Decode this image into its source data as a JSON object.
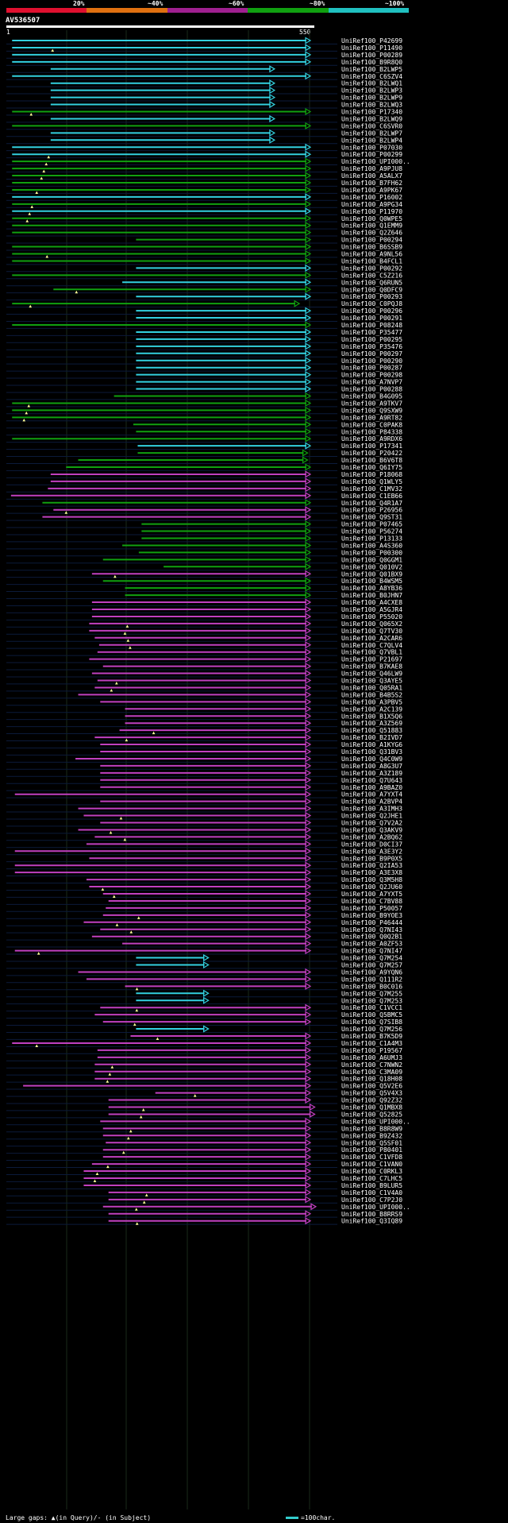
{
  "header": {
    "query_id": "AV536507",
    "ruler_start": "1",
    "ruler_end": "550",
    "percent_labels": [
      "20%",
      "~40%",
      "~60%",
      "~80%",
      "~100%"
    ],
    "percent_colors": [
      "#e0102f",
      "#e07010",
      "#a02090",
      "#10a010",
      "#20c0c0"
    ]
  },
  "colors": {
    "cyan": "#33d0e0",
    "green": "#10a010",
    "magenta": "#c040c0"
  },
  "hits": [
    {
      "id": "UniRef100_P42699",
      "s": 10,
      "e": 550,
      "c": "cyan",
      "a": false
    },
    {
      "id": "UniRef100_P11490",
      "s": 10,
      "e": 550,
      "c": "cyan",
      "a": true
    },
    {
      "id": "UniRef100_P00289",
      "s": 10,
      "e": 550,
      "c": "cyan",
      "a": false
    },
    {
      "id": "UniRef100_B9R8Q0",
      "s": 10,
      "e": 550,
      "c": "cyan",
      "a": false
    },
    {
      "id": "UniRef100_B2LWP5",
      "s": 80,
      "e": 485,
      "c": "cyan",
      "a": false
    },
    {
      "id": "UniRef100_C6SZV4",
      "s": 10,
      "e": 550,
      "c": "cyan",
      "a": false
    },
    {
      "id": "UniRef100_B2LWQ1",
      "s": 80,
      "e": 485,
      "c": "cyan",
      "a": false
    },
    {
      "id": "UniRef100_B2LWP3",
      "s": 80,
      "e": 485,
      "c": "cyan",
      "a": false
    },
    {
      "id": "UniRef100_B2LWP9",
      "s": 80,
      "e": 485,
      "c": "cyan",
      "a": false
    },
    {
      "id": "UniRef100_B2LWQ3",
      "s": 80,
      "e": 485,
      "c": "cyan",
      "a": false
    },
    {
      "id": "UniRef100_P17340",
      "s": 10,
      "e": 550,
      "c": "green",
      "a": true
    },
    {
      "id": "UniRef100_B2LWQ9",
      "s": 80,
      "e": 485,
      "c": "cyan",
      "a": false
    },
    {
      "id": "UniRef100_C6SVR0",
      "s": 10,
      "e": 550,
      "c": "green",
      "a": false
    },
    {
      "id": "UniRef100_B2LWP7",
      "s": 80,
      "e": 485,
      "c": "cyan",
      "a": false
    },
    {
      "id": "UniRef100_B2LWP4",
      "s": 80,
      "e": 485,
      "c": "cyan",
      "a": false
    },
    {
      "id": "UniRef100_P07030",
      "s": 10,
      "e": 550,
      "c": "cyan",
      "a": false
    },
    {
      "id": "UniRef100_P00299",
      "s": 10,
      "e": 550,
      "c": "cyan",
      "a": true
    },
    {
      "id": "UniRef100_UPI000..",
      "s": 10,
      "e": 550,
      "c": "green",
      "a": true
    },
    {
      "id": "UniRef100_A9PJU8",
      "s": 10,
      "e": 550,
      "c": "green",
      "a": true
    },
    {
      "id": "UniRef100_A5ALX7",
      "s": 10,
      "e": 550,
      "c": "green",
      "a": true
    },
    {
      "id": "UniRef100_B7FH62",
      "s": 10,
      "e": 550,
      "c": "green",
      "a": false
    },
    {
      "id": "UniRef100_A9PK67",
      "s": 10,
      "e": 550,
      "c": "green",
      "a": true
    },
    {
      "id": "UniRef100_P16002",
      "s": 10,
      "e": 550,
      "c": "cyan",
      "a": false
    },
    {
      "id": "UniRef100_A9PG34",
      "s": 10,
      "e": 550,
      "c": "green",
      "a": true
    },
    {
      "id": "UniRef100_P11970",
      "s": 10,
      "e": 550,
      "c": "cyan",
      "a": true
    },
    {
      "id": "UniRef100_Q0WPE5",
      "s": 10,
      "e": 550,
      "c": "green",
      "a": true
    },
    {
      "id": "UniRef100_Q1EMM9",
      "s": 10,
      "e": 550,
      "c": "green",
      "a": false
    },
    {
      "id": "UniRef100_Q2Z646",
      "s": 10,
      "e": 550,
      "c": "green",
      "a": false
    },
    {
      "id": "UniRef100_P00294",
      "s": 235,
      "e": 550,
      "c": "green",
      "a": false
    },
    {
      "id": "UniRef100_B6SSB9",
      "s": 10,
      "e": 550,
      "c": "green",
      "a": false
    },
    {
      "id": "UniRef100_A9NL56",
      "s": 10,
      "e": 550,
      "c": "green",
      "a": true
    },
    {
      "id": "UniRef100_B4FCL1",
      "s": 10,
      "e": 550,
      "c": "green",
      "a": false
    },
    {
      "id": "UniRef100_P00292",
      "s": 235,
      "e": 550,
      "c": "cyan",
      "a": false
    },
    {
      "id": "UniRef100_C5Z216",
      "s": 10,
      "e": 550,
      "c": "green",
      "a": false
    },
    {
      "id": "UniRef100_Q6RUN5",
      "s": 210,
      "e": 550,
      "c": "cyan",
      "a": false
    },
    {
      "id": "UniRef100_Q0DFC9",
      "s": 85,
      "e": 550,
      "c": "green",
      "a": true
    },
    {
      "id": "UniRef100_P00293",
      "s": 235,
      "e": 550,
      "c": "cyan",
      "a": false
    },
    {
      "id": "UniRef100_C0PQJ8",
      "s": 10,
      "e": 530,
      "c": "green",
      "a": true
    },
    {
      "id": "UniRef100_P00296",
      "s": 235,
      "e": 550,
      "c": "cyan",
      "a": false
    },
    {
      "id": "UniRef100_P00291",
      "s": 235,
      "e": 550,
      "c": "cyan",
      "a": false
    },
    {
      "id": "UniRef100_P08248",
      "s": 10,
      "e": 550,
      "c": "green",
      "a": false
    },
    {
      "id": "UniRef100_P35477",
      "s": 235,
      "e": 550,
      "c": "cyan",
      "a": false
    },
    {
      "id": "UniRef100_P00295",
      "s": 235,
      "e": 550,
      "c": "cyan",
      "a": false
    },
    {
      "id": "UniRef100_P35476",
      "s": 235,
      "e": 550,
      "c": "cyan",
      "a": false
    },
    {
      "id": "UniRef100_P00297",
      "s": 235,
      "e": 550,
      "c": "cyan",
      "a": false
    },
    {
      "id": "UniRef100_P00290",
      "s": 235,
      "e": 550,
      "c": "cyan",
      "a": false
    },
    {
      "id": "UniRef100_P00287",
      "s": 235,
      "e": 550,
      "c": "cyan",
      "a": false
    },
    {
      "id": "UniRef100_P00298",
      "s": 235,
      "e": 550,
      "c": "cyan",
      "a": false
    },
    {
      "id": "UniRef100_A7NVP7",
      "s": 235,
      "e": 550,
      "c": "cyan",
      "a": false
    },
    {
      "id": "UniRef100_P00288",
      "s": 235,
      "e": 550,
      "c": "cyan",
      "a": false
    },
    {
      "id": "UniRef100_B4G095",
      "s": 195,
      "e": 550,
      "c": "green",
      "a": false
    },
    {
      "id": "UniRef100_A9TKV7",
      "s": 10,
      "e": 550,
      "c": "green",
      "a": true
    },
    {
      "id": "UniRef100_Q9SXW9",
      "s": 10,
      "e": 550,
      "c": "green",
      "a": true
    },
    {
      "id": "UniRef100_A9RT82",
      "s": 10,
      "e": 550,
      "c": "green",
      "a": true
    },
    {
      "id": "UniRef100_C0PAK8",
      "s": 230,
      "e": 550,
      "c": "green",
      "a": false
    },
    {
      "id": "UniRef100_P84338",
      "s": 235,
      "e": 550,
      "c": "green",
      "a": false
    },
    {
      "id": "UniRef100_A9RDX6",
      "s": 10,
      "e": 550,
      "c": "green",
      "a": false
    },
    {
      "id": "UniRef100_P17341",
      "s": 238,
      "e": 550,
      "c": "cyan",
      "a": false
    },
    {
      "id": "UniRef100_P20422",
      "s": 238,
      "e": 545,
      "c": "green",
      "a": false
    },
    {
      "id": "UniRef100_B6V6T8",
      "s": 130,
      "e": 545,
      "c": "green",
      "a": false
    },
    {
      "id": "UniRef100_Q6IY75",
      "s": 108,
      "e": 550,
      "c": "green",
      "a": false
    },
    {
      "id": "UniRef100_P18068",
      "s": 80,
      "e": 550,
      "c": "magenta",
      "a": false
    },
    {
      "id": "UniRef100_Q1WLY5",
      "s": 80,
      "e": 550,
      "c": "magenta",
      "a": false
    },
    {
      "id": "UniRef100_C1MV32",
      "s": 75,
      "e": 550,
      "c": "magenta",
      "a": false
    },
    {
      "id": "UniRef100_C1EB66",
      "s": 8,
      "e": 550,
      "c": "magenta",
      "a": false
    },
    {
      "id": "UniRef100_Q4R1A7",
      "s": 65,
      "e": 550,
      "c": "green",
      "a": false
    },
    {
      "id": "UniRef100_P26956",
      "s": 85,
      "e": 550,
      "c": "magenta",
      "a": true
    },
    {
      "id": "UniRef100_Q9ST31",
      "s": 65,
      "e": 550,
      "c": "magenta",
      "a": false
    },
    {
      "id": "UniRef100_P07465",
      "s": 245,
      "e": 550,
      "c": "green",
      "a": false
    },
    {
      "id": "UniRef100_P56274",
      "s": 245,
      "e": 550,
      "c": "green",
      "a": false
    },
    {
      "id": "UniRef100_P13133",
      "s": 245,
      "e": 550,
      "c": "green",
      "a": false
    },
    {
      "id": "UniRef100_A4S360",
      "s": 210,
      "e": 550,
      "c": "green",
      "a": false
    },
    {
      "id": "UniRef100_P00300",
      "s": 240,
      "e": 550,
      "c": "green",
      "a": false
    },
    {
      "id": "UniRef100_Q0GGM1",
      "s": 175,
      "e": 550,
      "c": "green",
      "a": false
    },
    {
      "id": "UniRef100_Q010V2",
      "s": 285,
      "e": 550,
      "c": "green",
      "a": false
    },
    {
      "id": "UniRef100_Q01BX9",
      "s": 155,
      "e": 550,
      "c": "magenta",
      "a": true
    },
    {
      "id": "UniRef100_B4WSM5",
      "s": 175,
      "e": 550,
      "c": "green",
      "a": false
    },
    {
      "id": "UniRef100_A8YB36",
      "s": 215,
      "e": 550,
      "c": "green",
      "a": false
    },
    {
      "id": "UniRef100_B0JHN7",
      "s": 215,
      "e": 550,
      "c": "green",
      "a": false
    },
    {
      "id": "UniRef100_A4CXE8",
      "s": 155,
      "e": 550,
      "c": "magenta",
      "a": false
    },
    {
      "id": "UniRef100_A5GJR4",
      "s": 155,
      "e": 550,
      "c": "magenta",
      "a": false
    },
    {
      "id": "UniRef100_P55020",
      "s": 155,
      "e": 550,
      "c": "magenta",
      "a": false
    },
    {
      "id": "UniRef100_Q065X2",
      "s": 150,
      "e": 550,
      "c": "magenta",
      "a": true
    },
    {
      "id": "UniRef100_Q7TV30",
      "s": 150,
      "e": 550,
      "c": "magenta",
      "a": true
    },
    {
      "id": "UniRef100_A2CAR6",
      "s": 160,
      "e": 550,
      "c": "magenta",
      "a": true
    },
    {
      "id": "UniRef100_C7QLV4",
      "s": 168,
      "e": 550,
      "c": "magenta",
      "a": true
    },
    {
      "id": "UniRef100_Q7VBL1",
      "s": 165,
      "e": 550,
      "c": "magenta",
      "a": false
    },
    {
      "id": "UniRef100_P21697",
      "s": 150,
      "e": 550,
      "c": "magenta",
      "a": false
    },
    {
      "id": "UniRef100_B7KAE8",
      "s": 175,
      "e": 550,
      "c": "magenta",
      "a": false
    },
    {
      "id": "UniRef100_Q46LW9",
      "s": 155,
      "e": 550,
      "c": "magenta",
      "a": false
    },
    {
      "id": "UniRef100_Q3AYE5",
      "s": 165,
      "e": 550,
      "c": "magenta",
      "a": true
    },
    {
      "id": "UniRef100_Q05RA1",
      "s": 160,
      "e": 550,
      "c": "magenta",
      "a": true
    },
    {
      "id": "UniRef100_B4B5S2",
      "s": 130,
      "e": 550,
      "c": "magenta",
      "a": false
    },
    {
      "id": "UniRef100_A3PBV5",
      "s": 170,
      "e": 550,
      "c": "magenta",
      "a": false
    },
    {
      "id": "UniRef100_A2C139",
      "s": 215,
      "e": 550,
      "c": "magenta",
      "a": false
    },
    {
      "id": "UniRef100_B1X5Q6",
      "s": 215,
      "e": 550,
      "c": "magenta",
      "a": false
    },
    {
      "id": "UniRef100_A3Z569",
      "s": 215,
      "e": 550,
      "c": "magenta",
      "a": false
    },
    {
      "id": "UniRef100_Q51883",
      "s": 205,
      "e": 550,
      "c": "magenta",
      "a": true
    },
    {
      "id": "UniRef100_B2IVD7",
      "s": 160,
      "e": 550,
      "c": "magenta",
      "a": true
    },
    {
      "id": "UniRef100_A1KYG6",
      "s": 170,
      "e": 550,
      "c": "magenta",
      "a": false
    },
    {
      "id": "UniRef100_Q31BV3",
      "s": 170,
      "e": 550,
      "c": "magenta",
      "a": false
    },
    {
      "id": "UniRef100_Q4C0W9",
      "s": 125,
      "e": 550,
      "c": "magenta",
      "a": false
    },
    {
      "id": "UniRef100_A8G3U7",
      "s": 170,
      "e": 550,
      "c": "magenta",
      "a": false
    },
    {
      "id": "UniRef100_A3Z189",
      "s": 170,
      "e": 550,
      "c": "magenta",
      "a": false
    },
    {
      "id": "UniRef100_Q7U643",
      "s": 170,
      "e": 550,
      "c": "magenta",
      "a": false
    },
    {
      "id": "UniRef100_A9BAZ0",
      "s": 170,
      "e": 550,
      "c": "magenta",
      "a": false
    },
    {
      "id": "UniRef100_A7YXT4",
      "s": 15,
      "e": 550,
      "c": "magenta",
      "a": false
    },
    {
      "id": "UniRef100_A2BVP4",
      "s": 170,
      "e": 550,
      "c": "magenta",
      "a": false
    },
    {
      "id": "UniRef100_A3IMH3",
      "s": 130,
      "e": 550,
      "c": "magenta",
      "a": false
    },
    {
      "id": "UniRef100_Q2JHE1",
      "s": 140,
      "e": 550,
      "c": "magenta",
      "a": true
    },
    {
      "id": "UniRef100_Q7V2A2",
      "s": 170,
      "e": 550,
      "c": "magenta",
      "a": false
    },
    {
      "id": "UniRef100_Q3AKV9",
      "s": 130,
      "e": 550,
      "c": "magenta",
      "a": true
    },
    {
      "id": "UniRef100_A2BQ62",
      "s": 160,
      "e": 550,
      "c": "magenta",
      "a": true
    },
    {
      "id": "UniRef100_D0CI37",
      "s": 145,
      "e": 550,
      "c": "magenta",
      "a": false
    },
    {
      "id": "UniRef100_A3E3Y2",
      "s": 15,
      "e": 550,
      "c": "magenta",
      "a": false
    },
    {
      "id": "UniRef100_B9P0X5",
      "s": 150,
      "e": 550,
      "c": "magenta",
      "a": false
    },
    {
      "id": "UniRef100_Q2IA53",
      "s": 15,
      "e": 550,
      "c": "magenta",
      "a": false
    },
    {
      "id": "UniRef100_A3E3X8",
      "s": 15,
      "e": 550,
      "c": "magenta",
      "a": false
    },
    {
      "id": "UniRef100_Q3M5H8",
      "s": 145,
      "e": 550,
      "c": "magenta",
      "a": false
    },
    {
      "id": "UniRef100_Q2JU60",
      "s": 150,
      "e": 550,
      "c": "magenta",
      "a": true
    },
    {
      "id": "UniRef100_A7YXT5",
      "s": 175,
      "e": 550,
      "c": "magenta",
      "a": true
    },
    {
      "id": "UniRef100_C7BV88",
      "s": 185,
      "e": 550,
      "c": "magenta",
      "a": false
    },
    {
      "id": "UniRef100_P50057",
      "s": 180,
      "e": 550,
      "c": "magenta",
      "a": false
    },
    {
      "id": "UniRef100_B9YOE3",
      "s": 175,
      "e": 550,
      "c": "magenta",
      "a": true
    },
    {
      "id": "UniRef100_P46444",
      "s": 140,
      "e": 550,
      "c": "magenta",
      "a": true
    },
    {
      "id": "UniRef100_Q7NI43",
      "s": 170,
      "e": 550,
      "c": "magenta",
      "a": true
    },
    {
      "id": "UniRef100_Q0Q2B1",
      "s": 155,
      "e": 550,
      "c": "magenta",
      "a": false
    },
    {
      "id": "UniRef100_A0ZF53",
      "s": 210,
      "e": 550,
      "c": "magenta",
      "a": false
    },
    {
      "id": "UniRef100_Q7NI47",
      "s": 15,
      "e": 550,
      "c": "magenta",
      "a": true
    },
    {
      "id": "UniRef100_Q7M254",
      "s": 235,
      "e": 365,
      "c": "cyan",
      "a": false
    },
    {
      "id": "UniRef100_Q7M257",
      "s": 235,
      "e": 365,
      "c": "cyan",
      "a": false
    },
    {
      "id": "UniRef100_A9YQN6",
      "s": 130,
      "e": 550,
      "c": "magenta",
      "a": false
    },
    {
      "id": "UniRef100_Q111R2",
      "s": 145,
      "e": 550,
      "c": "magenta",
      "a": false
    },
    {
      "id": "UniRef100_B0C016",
      "s": 215,
      "e": 550,
      "c": "magenta",
      "a": true
    },
    {
      "id": "UniRef100_Q7M255",
      "s": 235,
      "e": 365,
      "c": "cyan",
      "a": false
    },
    {
      "id": "UniRef100_Q7M253",
      "s": 235,
      "e": 365,
      "c": "cyan",
      "a": false
    },
    {
      "id": "UniRef100_C1VCC1",
      "s": 170,
      "e": 550,
      "c": "magenta",
      "a": true
    },
    {
      "id": "UniRef100_Q5BMC5",
      "s": 160,
      "e": 550,
      "c": "magenta",
      "a": false
    },
    {
      "id": "UniRef100_Q7SIB8",
      "s": 175,
      "e": 550,
      "c": "magenta",
      "a": true
    },
    {
      "id": "UniRef100_Q7M256",
      "s": 235,
      "e": 365,
      "c": "cyan",
      "a": false
    },
    {
      "id": "UniRef100_B7K5D9",
      "s": 225,
      "e": 550,
      "c": "magenta",
      "a": true
    },
    {
      "id": "UniRef100_C1A4M3",
      "s": 10,
      "e": 550,
      "c": "magenta",
      "a": true
    },
    {
      "id": "UniRef100_P19567",
      "s": 165,
      "e": 550,
      "c": "magenta",
      "a": false
    },
    {
      "id": "UniRef100_A6UMJ3",
      "s": 165,
      "e": 550,
      "c": "magenta",
      "a": false
    },
    {
      "id": "UniRef100_C7NWN2",
      "s": 160,
      "e": 550,
      "c": "magenta",
      "a": true
    },
    {
      "id": "UniRef100_C3MA09",
      "s": 160,
      "e": 550,
      "c": "magenta",
      "a": true
    },
    {
      "id": "UniRef100_Q18H08",
      "s": 160,
      "e": 550,
      "c": "magenta",
      "a": true
    },
    {
      "id": "UniRef100_Q5V2E6",
      "s": 30,
      "e": 550,
      "c": "magenta",
      "a": false
    },
    {
      "id": "UniRef100_Q5V4X3",
      "s": 270,
      "e": 550,
      "c": "magenta",
      "a": true
    },
    {
      "id": "UniRef100_Q92Z32",
      "s": 185,
      "e": 550,
      "c": "magenta",
      "a": false
    },
    {
      "id": "UniRef100_Q1MBX8",
      "s": 185,
      "e": 558,
      "c": "magenta",
      "a": true
    },
    {
      "id": "UniRef100_Q52825",
      "s": 185,
      "e": 558,
      "c": "magenta",
      "a": true
    },
    {
      "id": "UniRef100_UPI000..",
      "s": 170,
      "e": 550,
      "c": "magenta",
      "a": false
    },
    {
      "id": "UniRef100_B8R8W9",
      "s": 175,
      "e": 550,
      "c": "magenta",
      "a": true
    },
    {
      "id": "UniRef100_B9Z432",
      "s": 175,
      "e": 550,
      "c": "magenta",
      "a": true
    },
    {
      "id": "UniRef100_Q5SF01",
      "s": 180,
      "e": 550,
      "c": "magenta",
      "a": false
    },
    {
      "id": "UniRef100_P80401",
      "s": 175,
      "e": 550,
      "c": "magenta",
      "a": true
    },
    {
      "id": "UniRef100_C1VFD8",
      "s": 175,
      "e": 550,
      "c": "magenta",
      "a": false
    },
    {
      "id": "UniRef100_C1VAN0",
      "s": 155,
      "e": 550,
      "c": "magenta",
      "a": true
    },
    {
      "id": "UniRef100_C0RKL3",
      "s": 140,
      "e": 550,
      "c": "magenta",
      "a": true
    },
    {
      "id": "UniRef100_C7LHC5",
      "s": 140,
      "e": 550,
      "c": "magenta",
      "a": true
    },
    {
      "id": "UniRef100_B9LUR5",
      "s": 140,
      "e": 550,
      "c": "magenta",
      "a": false
    },
    {
      "id": "UniRef100_C1V4A0",
      "s": 185,
      "e": 550,
      "c": "magenta",
      "a": true
    },
    {
      "id": "UniRef100_C7P2J0",
      "s": 185,
      "e": 550,
      "c": "magenta",
      "a": true
    },
    {
      "id": "UniRef100_UPI000..",
      "s": 175,
      "e": 560,
      "c": "magenta",
      "a": true
    },
    {
      "id": "UniRef100_B8RRS9",
      "s": 185,
      "e": 550,
      "c": "magenta",
      "a": false
    },
    {
      "id": "UniRef100_Q3IQ89",
      "s": 185,
      "e": 550,
      "c": "magenta",
      "a": true
    }
  ],
  "footer": {
    "gaps_text": "Large gaps: ▲(in Query)/- (in Subject)",
    "scale_text": "=100char."
  }
}
